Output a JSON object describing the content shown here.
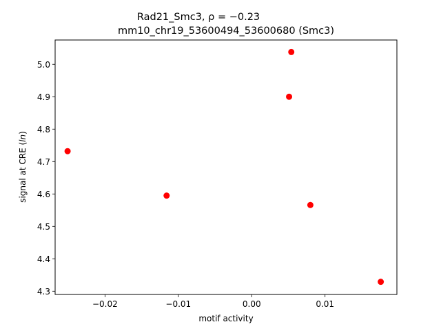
{
  "chart_data": {
    "type": "scatter",
    "title_line1": "Rad21_Smc3, ρ = −0.23",
    "title_line2": "mm10_chr19_53600494_53600680 (Smc3)",
    "xlabel": "motif activity",
    "ylabel_prefix": "signal at CRE (",
    "ylabel_italic": "ln",
    "ylabel_suffix": ")",
    "xlim": [
      -0.0268,
      0.0198
    ],
    "ylim": [
      4.29,
      5.075
    ],
    "x_ticks": [
      {
        "value": -0.02,
        "label": "−0.02"
      },
      {
        "value": -0.01,
        "label": "−0.01"
      },
      {
        "value": 0.0,
        "label": "0.00"
      },
      {
        "value": 0.01,
        "label": "0.01"
      }
    ],
    "y_ticks": [
      {
        "value": 4.3,
        "label": "4.3"
      },
      {
        "value": 4.4,
        "label": "4.4"
      },
      {
        "value": 4.5,
        "label": "4.5"
      },
      {
        "value": 4.6,
        "label": "4.6"
      },
      {
        "value": 4.7,
        "label": "4.7"
      },
      {
        "value": 4.8,
        "label": "4.8"
      },
      {
        "value": 4.9,
        "label": "4.9"
      },
      {
        "value": 5.0,
        "label": "5.0"
      }
    ],
    "points": [
      {
        "x": -0.0251,
        "y": 4.732
      },
      {
        "x": -0.0116,
        "y": 4.595
      },
      {
        "x": 0.0051,
        "y": 4.9
      },
      {
        "x": 0.0054,
        "y": 5.038
      },
      {
        "x": 0.008,
        "y": 4.566
      },
      {
        "x": 0.0176,
        "y": 4.329
      }
    ],
    "marker_color": "#ff0000",
    "grid": false
  }
}
